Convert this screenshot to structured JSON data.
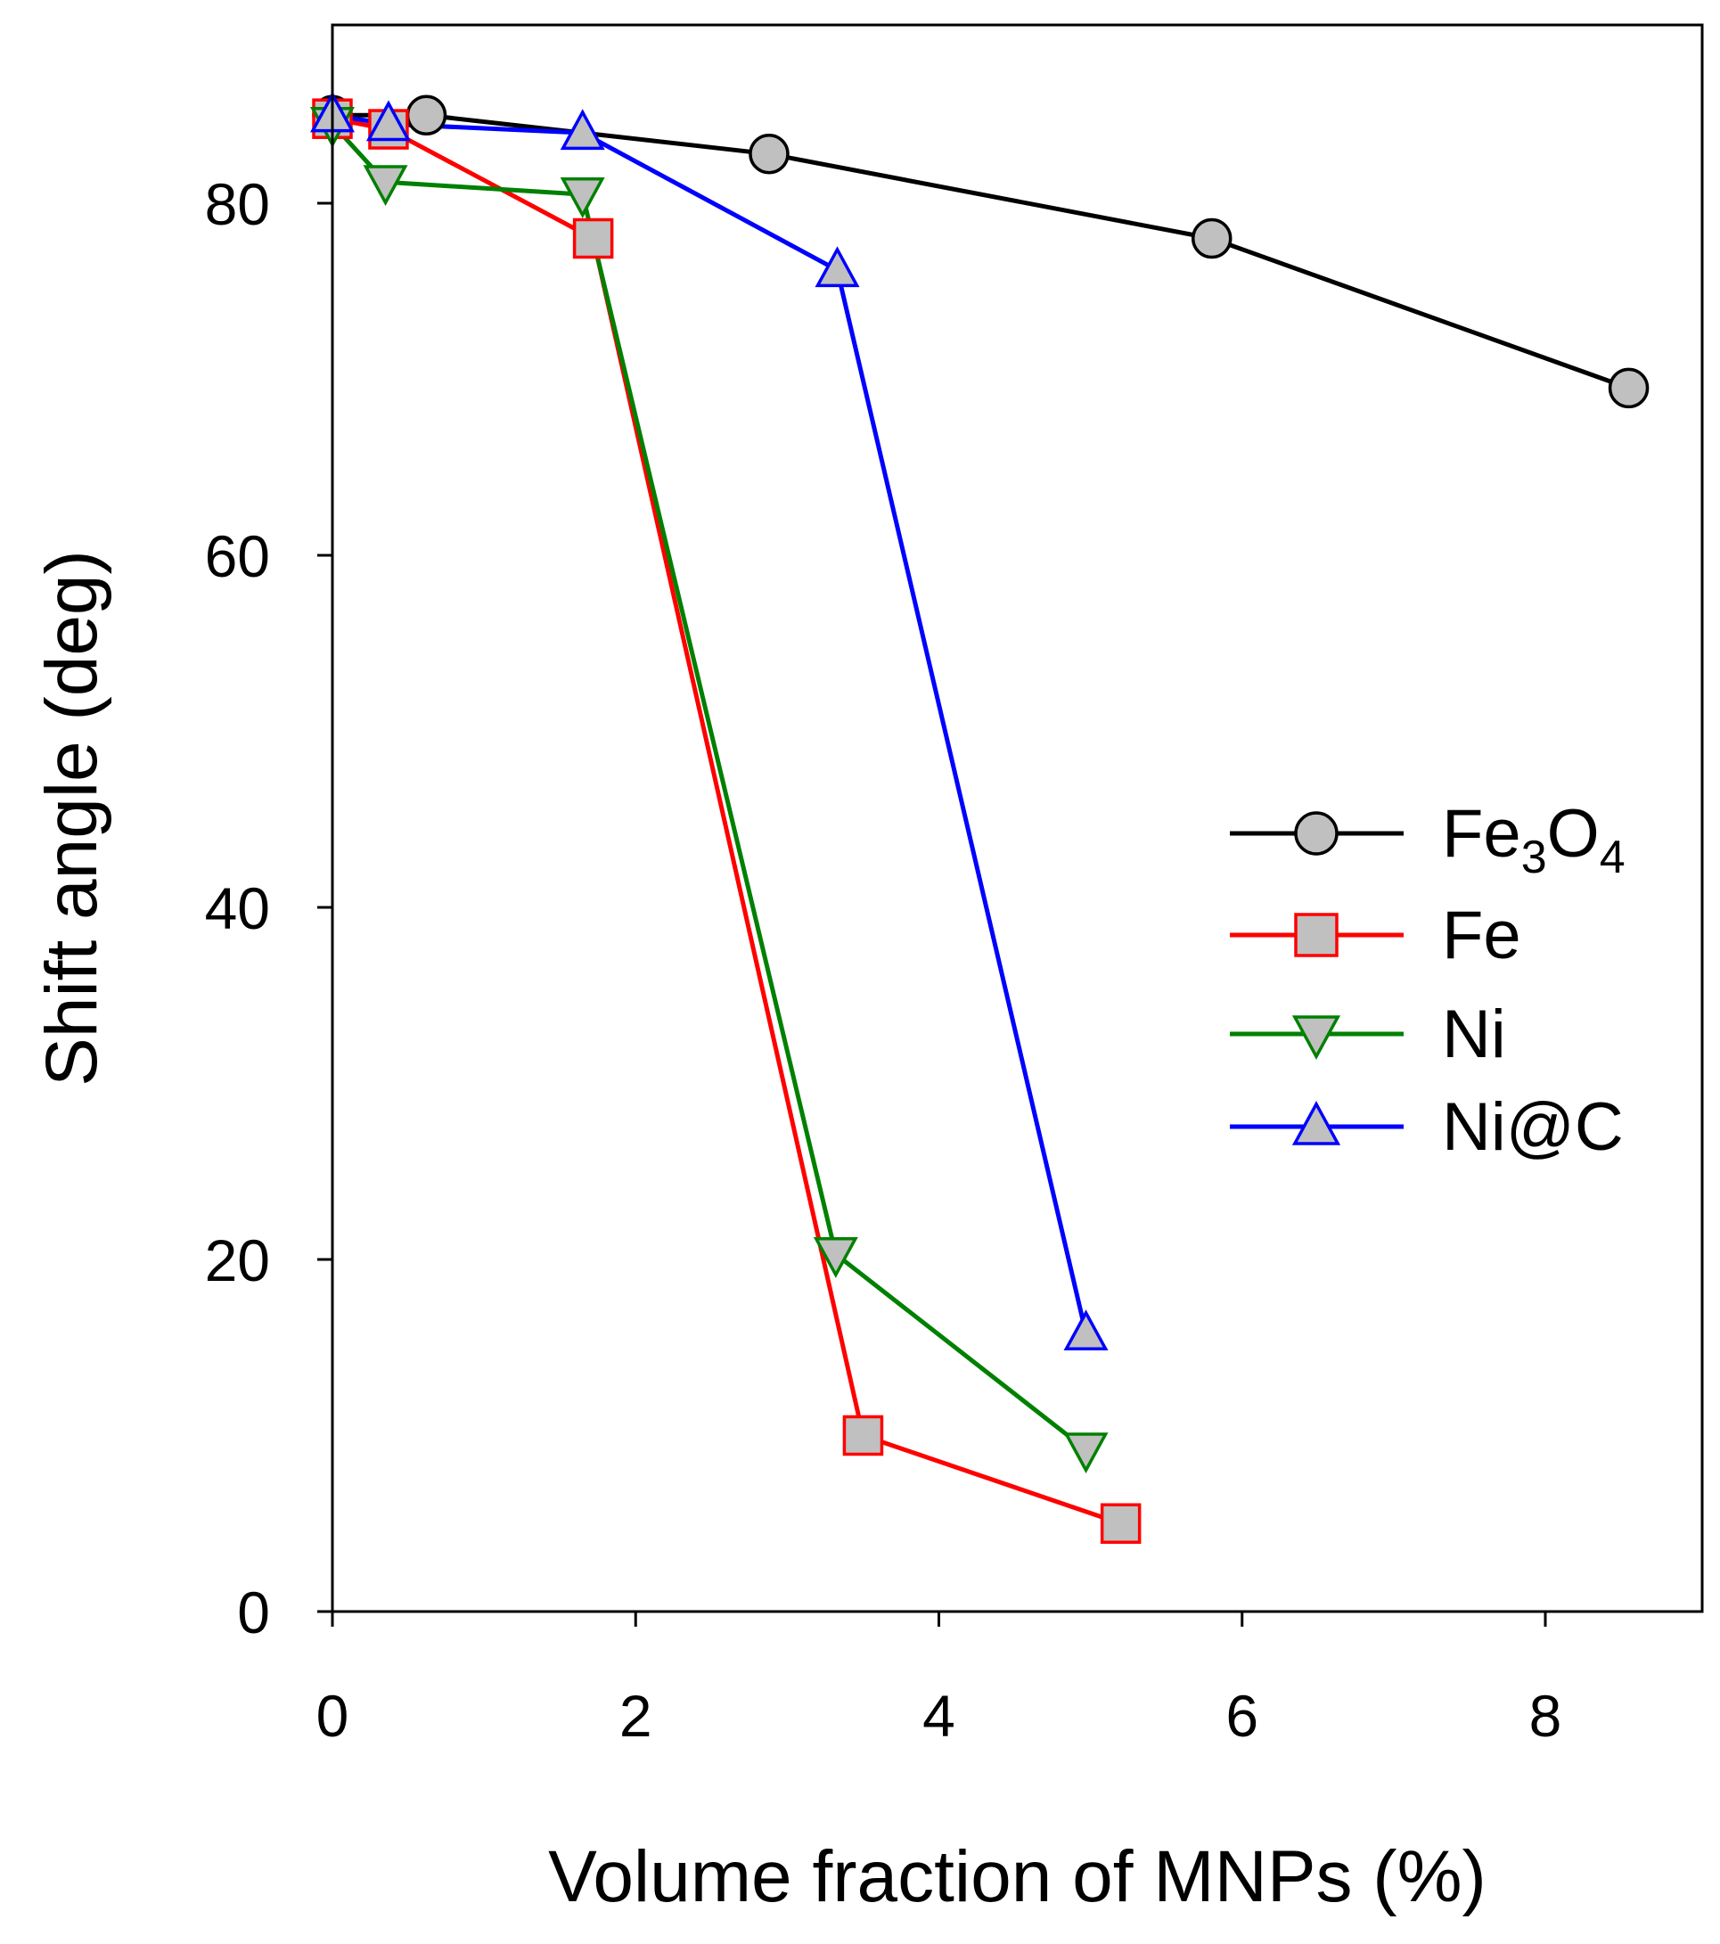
{
  "chart_data": {
    "type": "line",
    "title": "",
    "xlabel": "Volume fraction of MNPs (%)",
    "ylabel": "Shift angle (deg)",
    "xlim": [
      -0.2,
      9.0
    ],
    "ylim": [
      0,
      90
    ],
    "x_ticks": [
      0,
      2,
      4,
      6,
      8
    ],
    "y_ticks": [
      0,
      20,
      40,
      60,
      80
    ],
    "grid": false,
    "legend_position": "right-middle",
    "series": [
      {
        "name": "Fe3O4",
        "label_main": "Fe",
        "label_sub1": "3",
        "label_mid": "O",
        "label_sub2": "4",
        "color": "#000000",
        "marker": "circle",
        "marker_fill": "#c0c0c0",
        "x": [
          0.0,
          0.62,
          2.88,
          5.8,
          8.55
        ],
        "y": [
          85.0,
          85.0,
          82.8,
          78.0,
          69.5
        ]
      },
      {
        "name": "Fe",
        "label_main": "Fe",
        "color": "#ff0000",
        "marker": "square",
        "marker_fill": "#c0c0c0",
        "x": [
          0.0,
          0.37,
          1.72,
          3.5,
          5.2
        ],
        "y": [
          84.8,
          84.2,
          78.0,
          10.0,
          5.0
        ]
      },
      {
        "name": "Ni",
        "label_main": "Ni",
        "color": "#008000",
        "marker": "triangle-down",
        "marker_fill": "#c0c0c0",
        "x": [
          0.0,
          0.35,
          1.65,
          3.32,
          4.97
        ],
        "y": [
          84.5,
          81.2,
          80.5,
          20.3,
          9.2
        ]
      },
      {
        "name": "Ni@C",
        "label_main": "Ni@C",
        "color": "#0000ff",
        "marker": "triangle-up",
        "marker_fill": "#c0c0c0",
        "x": [
          0.0,
          0.37,
          1.65,
          3.33,
          4.97
        ],
        "y": [
          85.0,
          84.5,
          84.0,
          76.2,
          15.8
        ]
      }
    ]
  }
}
